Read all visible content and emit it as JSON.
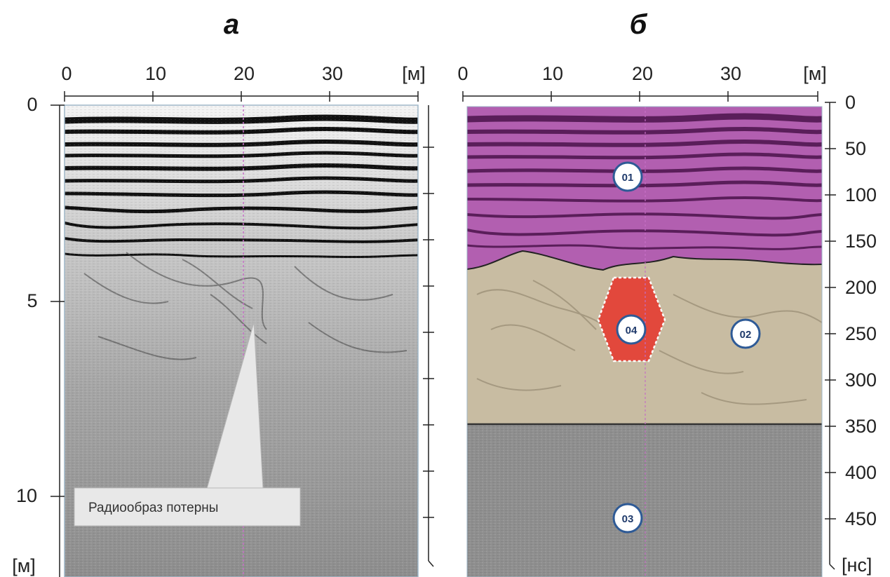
{
  "panels": {
    "a": {
      "letter": "а"
    },
    "b": {
      "letter": "б"
    }
  },
  "axes": {
    "top_ticks": [
      "0",
      "10",
      "20",
      "30"
    ],
    "top_unit": "[м]",
    "left_ticks": [
      "0",
      "5",
      "10"
    ],
    "left_unit": "[м]",
    "right_ticks": [
      "0",
      "50",
      "100",
      "150",
      "200",
      "250",
      "300",
      "350",
      "400",
      "450"
    ],
    "right_unit": "[нс]"
  },
  "callout": {
    "label": "Радиообраз потерны"
  },
  "zones": [
    {
      "id": "01",
      "color": "#b25fb0"
    },
    {
      "id": "02",
      "color": "#c8bca2"
    },
    {
      "id": "03",
      "color": "#8f8f8f"
    },
    {
      "id": "04",
      "color": "#e2483c"
    }
  ]
}
